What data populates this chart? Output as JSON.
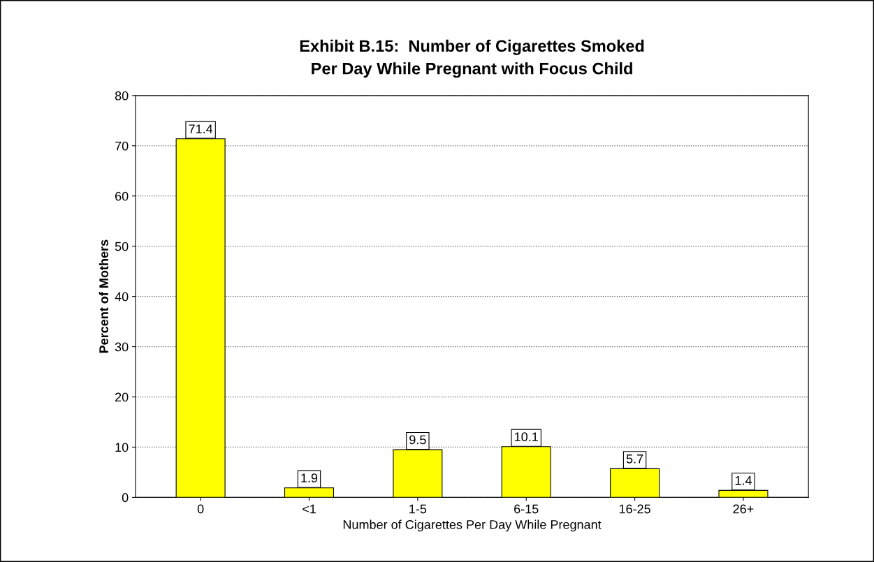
{
  "chart_data": {
    "type": "bar",
    "title": "Exhibit B.15:  Number of Cigarettes Smoked\nPer Day While Pregnant with Focus Child",
    "xlabel": "Number of Cigarettes Per Day While Pregnant",
    "ylabel": "Percent of Mothers",
    "categories": [
      "0",
      "<1",
      "1-5",
      "6-15",
      "16-25",
      "26+"
    ],
    "values": [
      71.4,
      1.9,
      9.5,
      10.1,
      5.7,
      1.4
    ],
    "color": "#ffff00",
    "ylim": [
      0,
      80
    ],
    "yticks": [
      0,
      10,
      20,
      30,
      40,
      50,
      60,
      70,
      80
    ],
    "grid": "y",
    "data_labels": true
  }
}
